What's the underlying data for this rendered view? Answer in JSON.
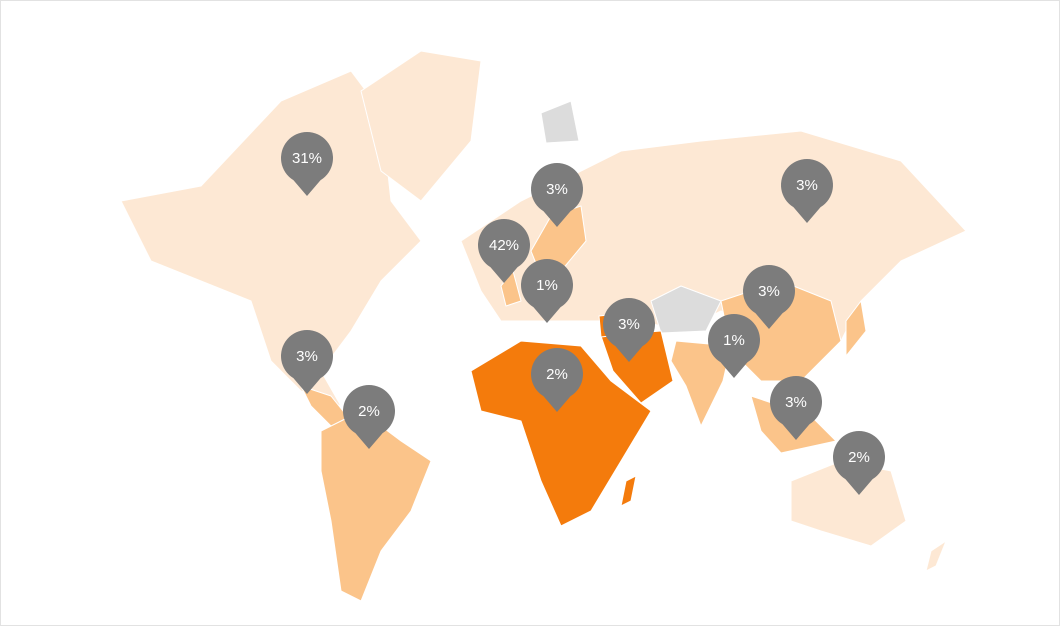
{
  "colors": {
    "low": "#fde8d4",
    "medium": "#fbc48a",
    "high": "#f47b0c",
    "no_data": "#dcdcdc",
    "pin": "#7c7c7c",
    "pin_text": "#ffffff"
  },
  "pins": [
    {
      "label": "31%"
    },
    {
      "label": "3%"
    },
    {
      "label": "3%"
    },
    {
      "label": "42%"
    },
    {
      "label": "1%"
    },
    {
      "label": "3%"
    },
    {
      "label": "3%"
    },
    {
      "label": "1%"
    },
    {
      "label": "3%"
    },
    {
      "label": "2%"
    },
    {
      "label": "2%"
    },
    {
      "label": "3%"
    },
    {
      "label": "2%"
    }
  ]
}
